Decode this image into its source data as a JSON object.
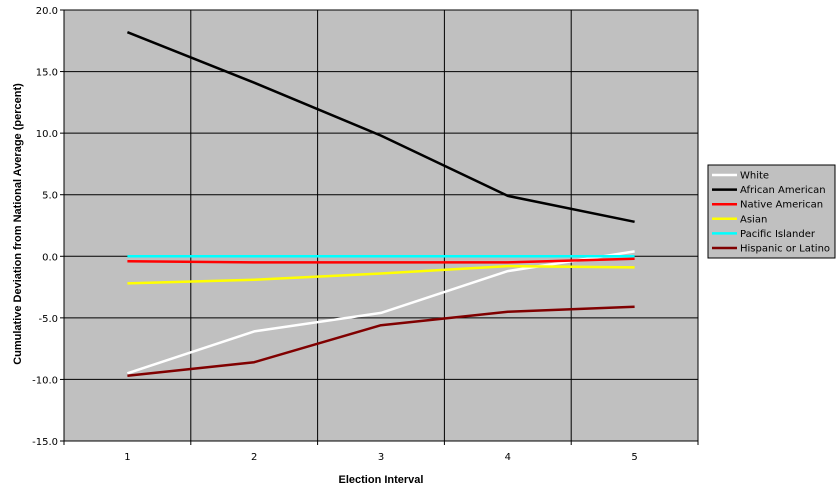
{
  "chart_data": {
    "type": "line",
    "title": "",
    "xlabel": "Election Interval",
    "ylabel": "Cumulative Deviation from National Average (percent)",
    "x": [
      1,
      2,
      3,
      4,
      5
    ],
    "xlim": [
      0.5,
      5.5
    ],
    "ylim": [
      -15,
      20
    ],
    "yticks": [
      "20.0",
      "15.0",
      "10.0",
      "5.0",
      "0.0",
      "-5.0",
      "-10.0",
      "-15.0"
    ],
    "xticks": [
      "1",
      "2",
      "3",
      "4",
      "5"
    ],
    "grid": true,
    "legend_position": "right",
    "plot_background": "#c0c0c0",
    "series": [
      {
        "name": "White",
        "color": "#ffffff",
        "values": [
          -9.5,
          -6.1,
          -4.6,
          -1.2,
          0.4
        ]
      },
      {
        "name": "African American",
        "color": "#000000",
        "values": [
          18.2,
          14.1,
          9.8,
          4.9,
          2.8
        ]
      },
      {
        "name": "Native American",
        "color": "#ff0000",
        "values": [
          -0.4,
          -0.5,
          -0.5,
          -0.5,
          -0.2
        ]
      },
      {
        "name": "Asian",
        "color": "#ffff00",
        "values": [
          -2.2,
          -1.9,
          -1.4,
          -0.8,
          -0.9
        ]
      },
      {
        "name": "Pacific Islander",
        "color": "#00ffff",
        "values": [
          0.0,
          0.0,
          0.0,
          0.0,
          0.0
        ]
      },
      {
        "name": "Hispanic or Latino",
        "color": "#800000",
        "values": [
          -9.7,
          -8.6,
          -5.6,
          -4.5,
          -4.1
        ]
      }
    ]
  }
}
